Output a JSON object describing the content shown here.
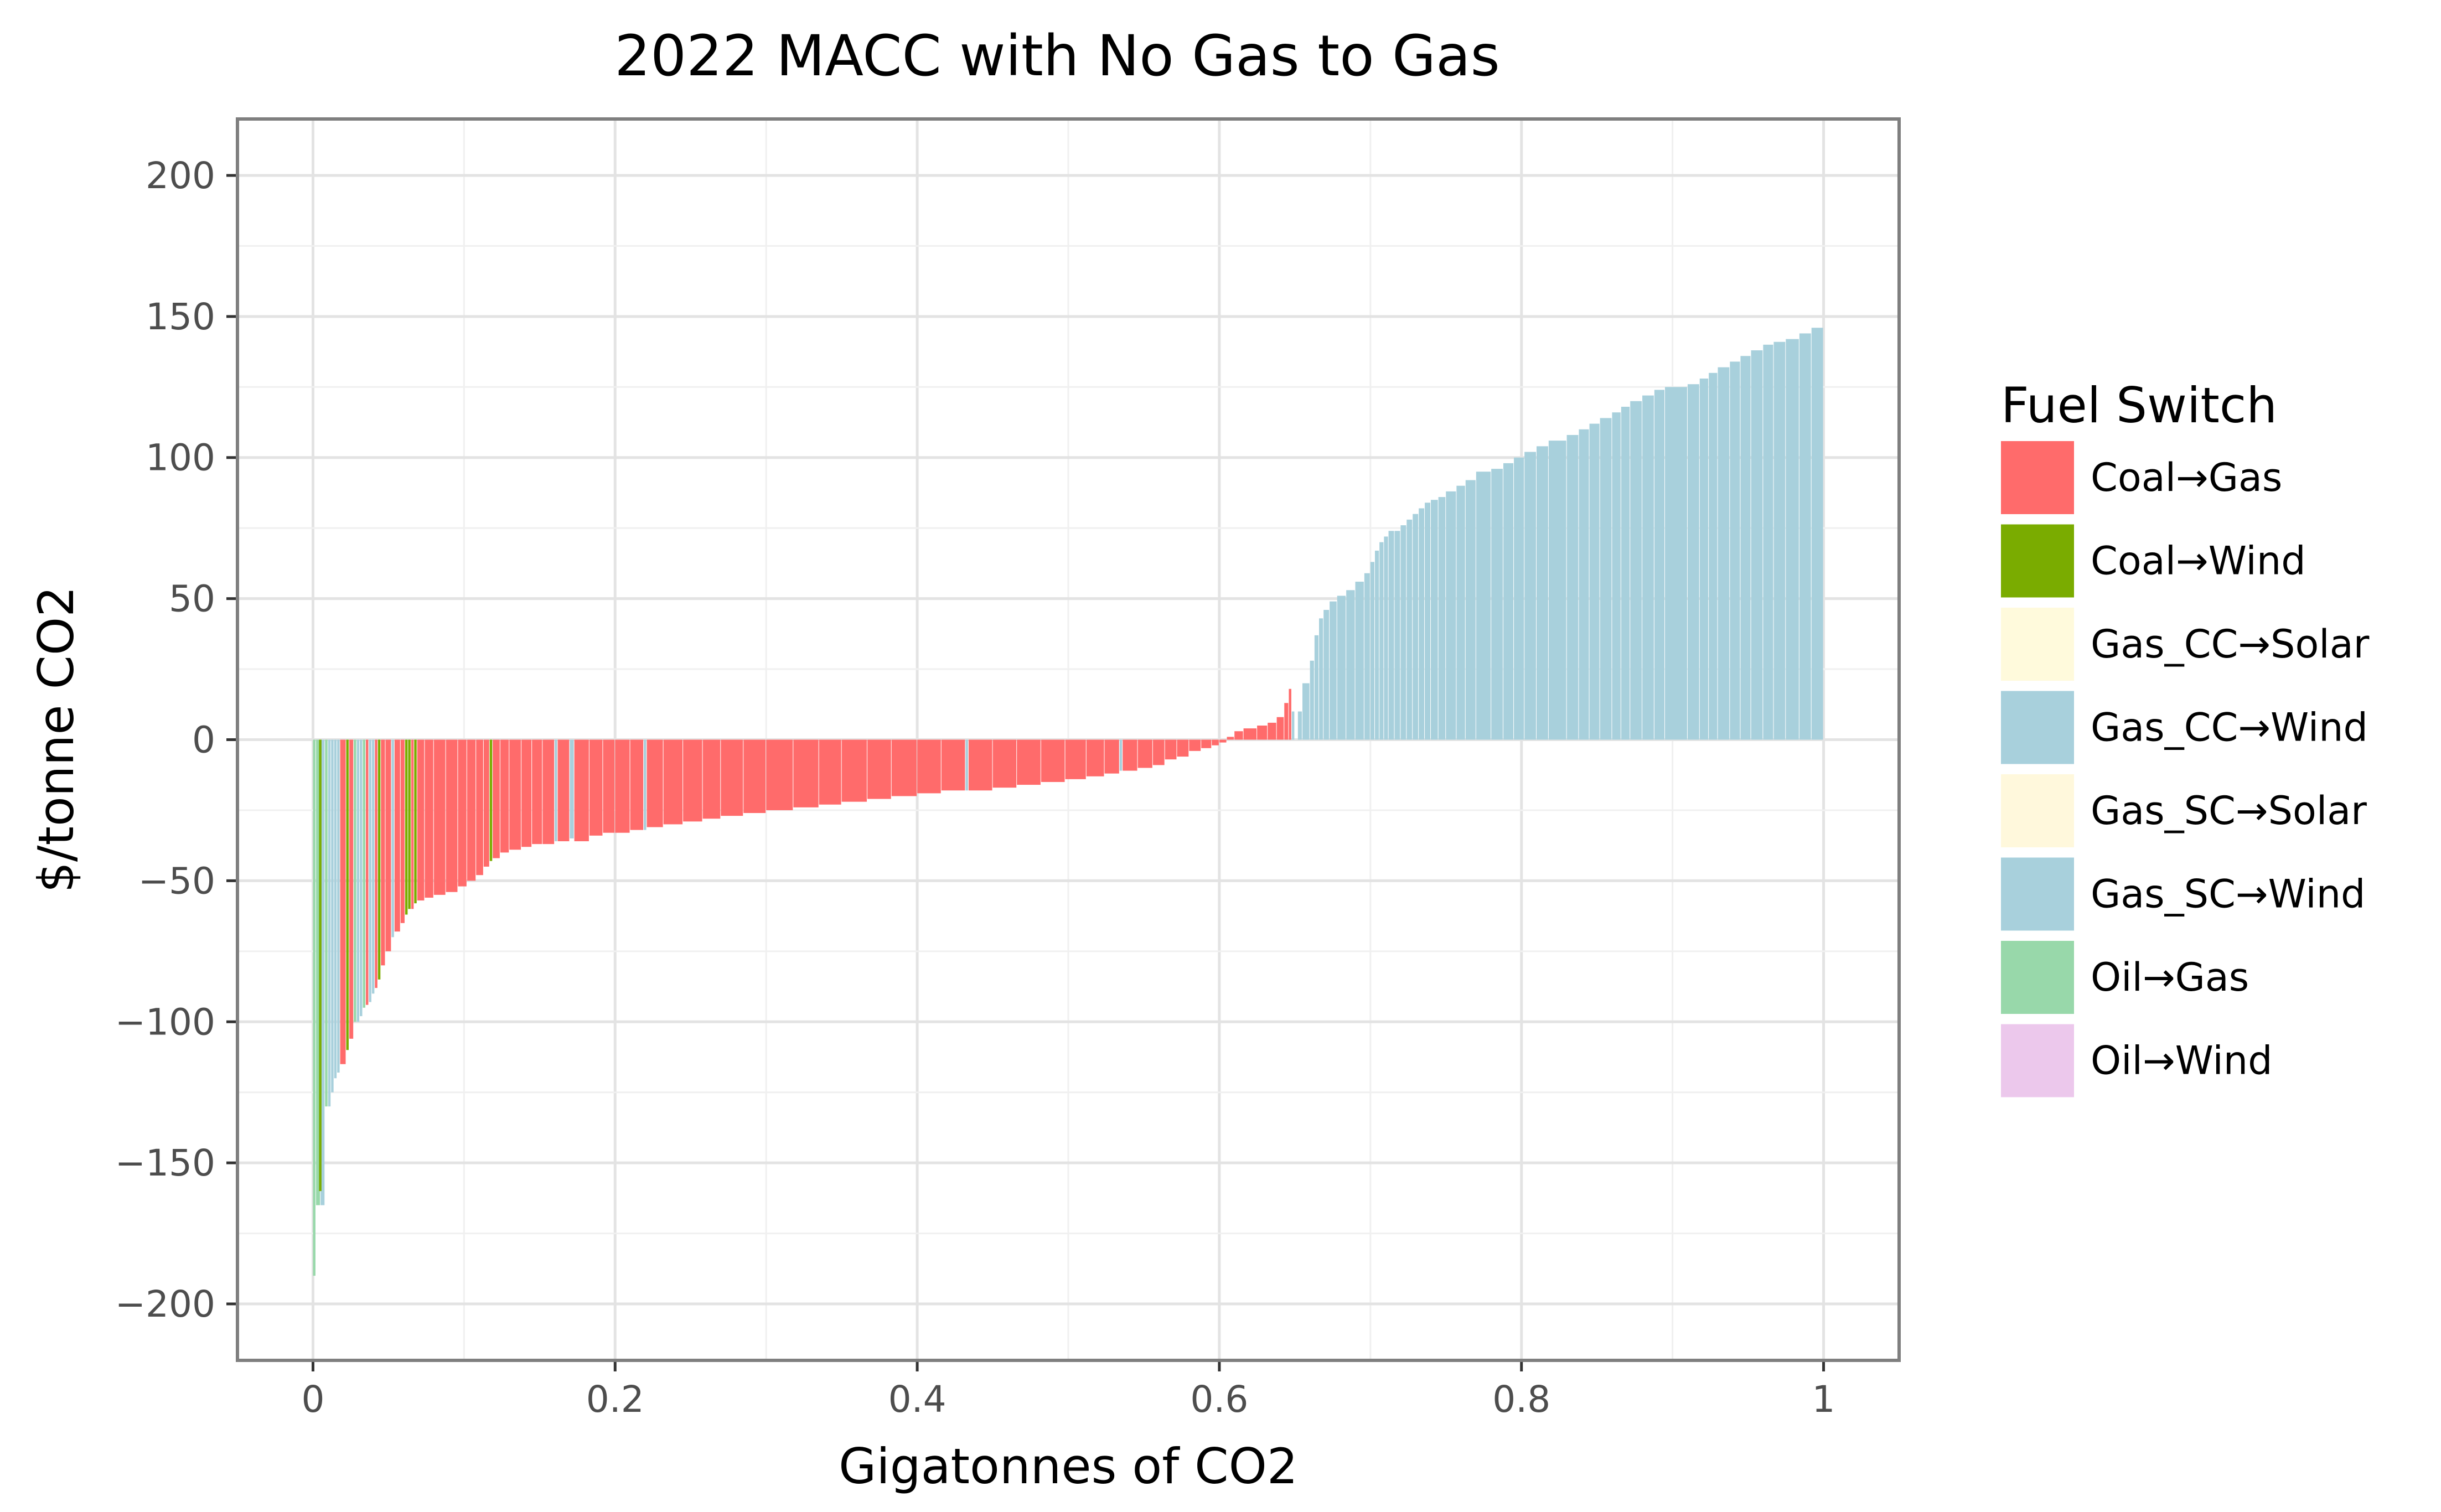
{
  "chart_data": {
    "type": "bar",
    "title": "2022 MACC with No Gas to Gas",
    "xlabel": "Gigatonnes of CO2",
    "ylabel": "$/tonne CO2",
    "xlim": [
      -0.05,
      1.05
    ],
    "ylim": [
      -220,
      220
    ],
    "x_ticks": [
      0,
      0.2,
      0.4,
      0.6,
      0.8,
      1
    ],
    "x_tick_labels": [
      "0",
      "0.2",
      "0.4",
      "0.6",
      "0.8",
      "1"
    ],
    "y_ticks": [
      200,
      150,
      100,
      50,
      0,
      -50,
      -100,
      -150,
      -200
    ],
    "y_tick_labels": [
      "200",
      "150",
      "100",
      "50",
      "0",
      "−50",
      "−100",
      "−150",
      "−200"
    ],
    "grid": true,
    "legend": {
      "title": "Fuel Switch",
      "placement": "right",
      "entries": [
        {
          "label": "Coal→Gas",
          "color": "#ff6b6b"
        },
        {
          "label": "Coal→Wind",
          "color": "#7aac00"
        },
        {
          "label": "Gas_CC→Solar",
          "color": "#fffadc"
        },
        {
          "label": "Gas_CC→Wind",
          "color": "#a8d0dc"
        },
        {
          "label": "Gas_SC→Solar",
          "color": "#fff8dc"
        },
        {
          "label": "Gas_SC→Wind",
          "color": "#a8d0dc"
        },
        {
          "label": "Oil→Gas",
          "color": "#98d8aa"
        },
        {
          "label": "Oil→Wind",
          "color": "#ecc8ec"
        }
      ]
    },
    "series": [
      {
        "name": "Oil→Gas",
        "points": [
          [
            0.0,
            0.002,
            -190
          ],
          [
            0.002,
            0.005,
            -165
          ],
          [
            0.008,
            0.01,
            -130
          ],
          [
            0.027,
            0.029,
            -100
          ],
          [
            0.033,
            0.035,
            -95
          ]
        ]
      },
      {
        "name": "Gas_CC→Wind",
        "points": [
          [
            0.005,
            0.008,
            -165
          ],
          [
            0.01,
            0.012,
            -130
          ],
          [
            0.012,
            0.014,
            -125
          ],
          [
            0.014,
            0.016,
            -120
          ],
          [
            0.016,
            0.018,
            -118
          ],
          [
            0.029,
            0.031,
            -100
          ],
          [
            0.031,
            0.033,
            -98
          ],
          [
            0.037,
            0.039,
            -93
          ],
          [
            0.039,
            0.041,
            -90
          ],
          [
            0.052,
            0.054,
            -70
          ],
          [
            0.16,
            0.162,
            -36
          ],
          [
            0.17,
            0.173,
            -35
          ],
          [
            0.219,
            0.221,
            -32
          ],
          [
            0.432,
            0.434,
            -18
          ],
          [
            0.534,
            0.536,
            -11
          ],
          [
            0.648,
            0.65,
            10
          ],
          [
            0.652,
            0.655,
            10
          ],
          [
            0.655,
            0.66,
            20
          ],
          [
            0.66,
            0.663,
            28
          ],
          [
            0.663,
            0.666,
            37
          ],
          [
            0.666,
            0.669,
            43
          ],
          [
            0.669,
            0.673,
            46
          ],
          [
            0.673,
            0.678,
            49
          ],
          [
            0.678,
            0.684,
            51
          ],
          [
            0.684,
            0.69,
            53
          ],
          [
            0.69,
            0.696,
            56
          ],
          [
            0.696,
            0.7,
            59
          ],
          [
            0.7,
            0.703,
            63
          ],
          [
            0.703,
            0.706,
            67
          ],
          [
            0.706,
            0.709,
            70
          ],
          [
            0.709,
            0.712,
            72
          ],
          [
            0.712,
            0.716,
            74
          ],
          [
            0.716,
            0.72,
            74
          ],
          [
            0.72,
            0.724,
            76
          ],
          [
            0.724,
            0.728,
            78
          ],
          [
            0.728,
            0.732,
            80
          ],
          [
            0.732,
            0.736,
            82
          ],
          [
            0.736,
            0.74,
            84
          ],
          [
            0.74,
            0.745,
            85
          ],
          [
            0.745,
            0.75,
            86
          ],
          [
            0.75,
            0.757,
            88
          ],
          [
            0.757,
            0.763,
            90
          ],
          [
            0.763,
            0.77,
            92
          ],
          [
            0.77,
            0.78,
            95
          ],
          [
            0.78,
            0.788,
            96
          ],
          [
            0.788,
            0.795,
            98
          ],
          [
            0.795,
            0.802,
            100
          ],
          [
            0.802,
            0.81,
            102
          ],
          [
            0.81,
            0.818,
            104
          ],
          [
            0.818,
            0.83,
            106
          ],
          [
            0.83,
            0.838,
            108
          ],
          [
            0.838,
            0.845,
            110
          ],
          [
            0.845,
            0.852,
            112
          ],
          [
            0.852,
            0.86,
            114
          ],
          [
            0.86,
            0.866,
            116
          ],
          [
            0.866,
            0.872,
            118
          ],
          [
            0.872,
            0.88,
            120
          ],
          [
            0.88,
            0.888,
            122
          ],
          [
            0.888,
            0.895,
            124
          ],
          [
            0.895,
            0.91,
            125
          ],
          [
            0.91,
            0.918,
            126
          ],
          [
            0.918,
            0.924,
            128
          ],
          [
            0.924,
            0.93,
            130
          ],
          [
            0.93,
            0.938,
            132
          ],
          [
            0.938,
            0.945,
            134
          ],
          [
            0.945,
            0.952,
            136
          ],
          [
            0.952,
            0.96,
            138
          ],
          [
            0.96,
            0.967,
            140
          ],
          [
            0.967,
            0.975,
            141
          ],
          [
            0.975,
            0.984,
            142
          ],
          [
            0.984,
            0.992,
            144
          ],
          [
            0.992,
            1.0,
            146
          ]
        ]
      },
      {
        "name": "Coal→Wind",
        "points": [
          [
            0.004,
            0.006,
            -160
          ],
          [
            0.022,
            0.024,
            -110
          ],
          [
            0.043,
            0.045,
            -85
          ],
          [
            0.061,
            0.063,
            -62
          ],
          [
            0.063,
            0.065,
            -60
          ],
          [
            0.067,
            0.069,
            -58
          ],
          [
            0.117,
            0.119,
            -43
          ]
        ]
      },
      {
        "name": "Coal→Gas",
        "points": [
          [
            0.018,
            0.022,
            -115
          ],
          [
            0.024,
            0.027,
            -106
          ],
          [
            0.035,
            0.037,
            -94
          ],
          [
            0.041,
            0.043,
            -88
          ],
          [
            0.045,
            0.048,
            -80
          ],
          [
            0.048,
            0.052,
            -75
          ],
          [
            0.054,
            0.058,
            -68
          ],
          [
            0.058,
            0.061,
            -65
          ],
          [
            0.065,
            0.067,
            -60
          ],
          [
            0.069,
            0.074,
            -57
          ],
          [
            0.074,
            0.08,
            -56
          ],
          [
            0.08,
            0.088,
            -55
          ],
          [
            0.088,
            0.096,
            -54
          ],
          [
            0.096,
            0.102,
            -52
          ],
          [
            0.102,
            0.108,
            -50
          ],
          [
            0.108,
            0.113,
            -48
          ],
          [
            0.113,
            0.117,
            -45
          ],
          [
            0.119,
            0.124,
            -42
          ],
          [
            0.124,
            0.13,
            -40
          ],
          [
            0.13,
            0.138,
            -39
          ],
          [
            0.138,
            0.145,
            -38
          ],
          [
            0.145,
            0.152,
            -37
          ],
          [
            0.152,
            0.16,
            -37
          ],
          [
            0.162,
            0.17,
            -36
          ],
          [
            0.173,
            0.183,
            -36
          ],
          [
            0.183,
            0.192,
            -34
          ],
          [
            0.192,
            0.2,
            -33
          ],
          [
            0.2,
            0.21,
            -33
          ],
          [
            0.21,
            0.219,
            -32
          ],
          [
            0.221,
            0.232,
            -31
          ],
          [
            0.232,
            0.245,
            -30
          ],
          [
            0.245,
            0.258,
            -29
          ],
          [
            0.258,
            0.27,
            -28
          ],
          [
            0.27,
            0.285,
            -27
          ],
          [
            0.285,
            0.3,
            -26
          ],
          [
            0.3,
            0.318,
            -25
          ],
          [
            0.318,
            0.335,
            -24
          ],
          [
            0.335,
            0.35,
            -23
          ],
          [
            0.35,
            0.367,
            -22
          ],
          [
            0.367,
            0.383,
            -21
          ],
          [
            0.383,
            0.4,
            -20
          ],
          [
            0.4,
            0.416,
            -19
          ],
          [
            0.416,
            0.432,
            -18
          ],
          [
            0.434,
            0.45,
            -18
          ],
          [
            0.45,
            0.466,
            -17
          ],
          [
            0.466,
            0.482,
            -16
          ],
          [
            0.482,
            0.498,
            -15
          ],
          [
            0.498,
            0.512,
            -14
          ],
          [
            0.512,
            0.524,
            -13
          ],
          [
            0.524,
            0.534,
            -12
          ],
          [
            0.536,
            0.546,
            -11
          ],
          [
            0.546,
            0.556,
            -10
          ],
          [
            0.556,
            0.564,
            -9
          ],
          [
            0.564,
            0.572,
            -7
          ],
          [
            0.572,
            0.58,
            -6
          ],
          [
            0.58,
            0.588,
            -4
          ],
          [
            0.588,
            0.595,
            -3
          ],
          [
            0.595,
            0.6,
            -2
          ],
          [
            0.6,
            0.605,
            -1
          ],
          [
            0.605,
            0.61,
            1
          ],
          [
            0.61,
            0.616,
            3
          ],
          [
            0.616,
            0.625,
            4
          ],
          [
            0.625,
            0.632,
            5
          ],
          [
            0.632,
            0.638,
            6
          ],
          [
            0.638,
            0.643,
            8
          ],
          [
            0.643,
            0.646,
            13
          ],
          [
            0.646,
            0.648,
            18
          ]
        ]
      }
    ]
  }
}
